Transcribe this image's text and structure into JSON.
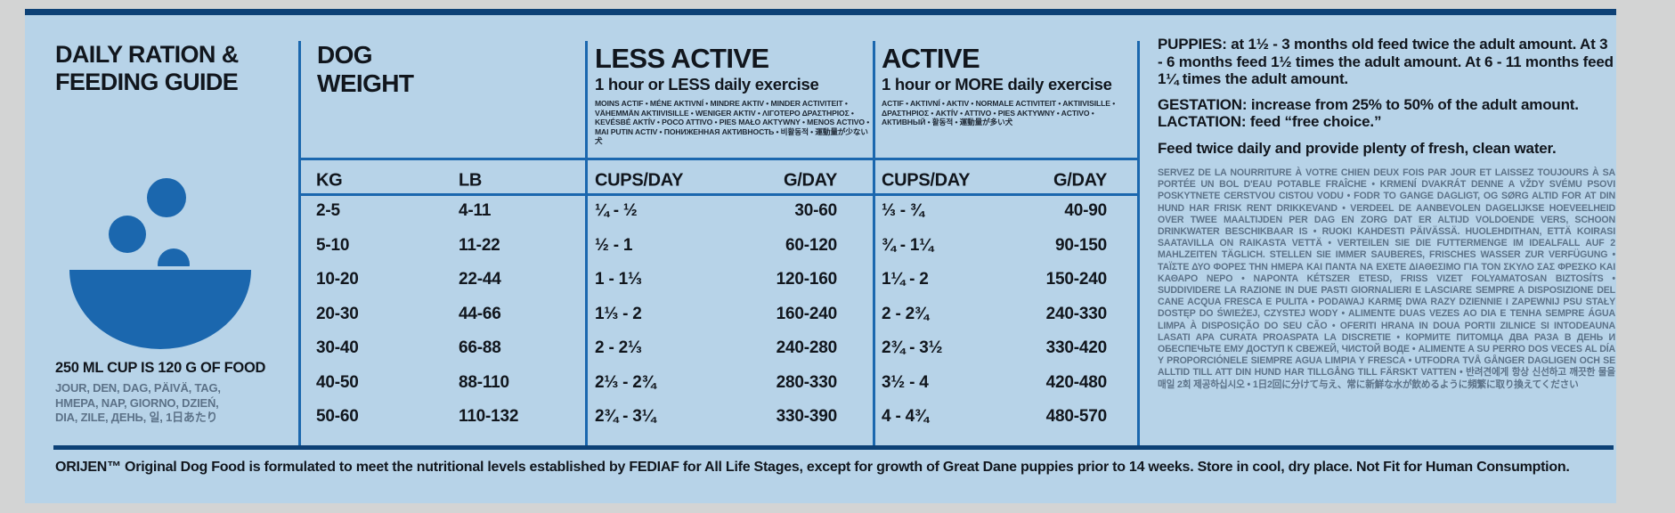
{
  "colors": {
    "panel_background": "#b7d3e8",
    "accent_blue": "#1b67ae",
    "dark_navy": "#0d4176",
    "text_dark": "#11161d",
    "text_gray": "#5c7288"
  },
  "left_panel": {
    "title_line1": "DAILY RATION &",
    "title_line2": "FEEDING GUIDE",
    "bowl_icon": "food-bowl-with-kibble",
    "cup_note": "250 ML CUP IS 120 G OF FOOD",
    "day_words": "JOUR, DEN, DAG, PÄIVÄ, TAG, HMEPA, NAP, GIORNO, DZIEŃ, DIA, ZILE, ДЕНЬ, 일, 1日あたり"
  },
  "table": {
    "weight": {
      "line1": "DOG",
      "line2": "WEIGHT",
      "col_kg": "KG",
      "col_lb": "LB"
    },
    "less_active": {
      "title": "LESS ACTIVE",
      "subtitle": "1 hour or LESS daily exercise",
      "langs": "MOINS ACTIF • MÉNE AKTIVNÍ • MINDRE AKTIV • MINDER ACTIVITEIT • VÄHEMMÄN AKTIIVISILLE • WENIGER AKTIV • ΛΙΓΟΤΕΡΟ ΔΡΑΣΤΗΡΙΟΣ • KEVÉSBÉ AKTÍV • POCO ATTIVO • PIES MAŁO AKTYWNY • MENOS ACTIVO • MAI PUTIN ACTIV • ПОНИЖЕННАЯ АКТИВНОСТЬ • 비활동적 • 運動量が少ない犬",
      "col_cups": "CUPS/DAY",
      "col_g": "G/DAY"
    },
    "active": {
      "title": "ACTIVE",
      "subtitle": "1 hour or MORE daily exercise",
      "langs": "ACTIF • AKTIVNÍ • AKTIV • NORMALE ACTIVITEIT • AKTIIVISILLE • ΔΡΑΣΤΗΡΙΟΣ • AKTÍV • ATTIVO • PIES AKTYWNY • ACTIVO • АКТИВНЫЙ • 활동적 • 運動量が多い犬",
      "col_cups": "CUPS/DAY",
      "col_g": "G/DAY"
    },
    "rows": [
      {
        "kg": "2-5",
        "lb": "4-11",
        "la_cups": "¼ - ½",
        "la_g": "30-60",
        "a_cups": "⅓ - ¾",
        "a_g": "40-90"
      },
      {
        "kg": "5-10",
        "lb": "11-22",
        "la_cups": "½ - 1",
        "la_g": "60-120",
        "a_cups": "¾ - 1¼",
        "a_g": "90-150"
      },
      {
        "kg": "10-20",
        "lb": "22-44",
        "la_cups": "1 - 1⅓",
        "la_g": "120-160",
        "a_cups": "1¼ - 2",
        "a_g": "150-240"
      },
      {
        "kg": "20-30",
        "lb": "44-66",
        "la_cups": "1⅓ - 2",
        "la_g": "160-240",
        "a_cups": "2 - 2¾",
        "a_g": "240-330"
      },
      {
        "kg": "30-40",
        "lb": "66-88",
        "la_cups": "2 - 2⅓",
        "la_g": "240-280",
        "a_cups": "2¾ - 3½",
        "a_g": "330-420"
      },
      {
        "kg": "40-50",
        "lb": "88-110",
        "la_cups": "2⅓ - 2¾",
        "la_g": "280-330",
        "a_cups": "3½ - 4",
        "a_g": "420-480"
      },
      {
        "kg": "50-60",
        "lb": "110-132",
        "la_cups": "2¾ - 3¼",
        "la_g": "330-390",
        "a_cups": "4 - 4¾",
        "a_g": "480-570"
      }
    ]
  },
  "right_panel": {
    "puppies_label": "PUPPIES:",
    "puppies_text": " at 1½ - 3 months old feed twice the adult amount. At 3 - 6 months feed 1½ times the adult amount. At 6 - 11 months feed 1¼ times the adult amount.",
    "gestation_label": "GESTATION:",
    "gestation_text": " increase from 25% to 50% of the adult amount.",
    "lactation_label": "LACTATION:",
    "lactation_text": " feed “free choice.”",
    "water_note": "Feed twice daily and provide plenty of fresh, clean water.",
    "multilang_paragraph": "SERVEZ DE LA NOURRITURE À VOTRE CHIEN DEUX FOIS PAR JOUR ET LAISSEZ TOUJOURS À SA PORTÉE UN BOL D'EAU POTABLE FRAÎCHE • KRMENÍ DVAKRÁT DENNE A VŽDY SVÉMU PSOVI POSKYTNETE CERSTVOU CISTOU VODU • FODR TO GANGE DAGLIGT, OG SØRG ALTID FOR AT DIN HUND HAR FRISK RENT DRIKKEVAND • VERDEEL DE AANBEVOLEN DAGELIJKSE HOEVEELHEID OVER TWEE MAALTIJDEN PER DAG EN ZORG DAT ER ALTIJD VOLDOENDE VERS, SCHOON DRINKWATER BESCHIKBAAR IS • RUOKI KAHDESTI PÄIVÄSSÄ. HUOLEHDITHAN, ETTÄ KOIRASI SAATAVILLA ON RAIKASTA VETTÄ • VERTEILEN SIE DIE FUTTERMENGE IM IDEALFALL AUF 2 MAHLZEITEN TÄGLICH. STELLEN SIE IMMER SAUBERES, FRISCHES WASSER ZUR VERFÜGUNG • ΤΑΪΣΤΕ ΔΥΟ ΦΟΡΕΣ ΤΗΝ ΗΜΕΡΑ ΚΑΙ ΠΑΝΤΑ ΝΑ ΕΧΕΤΕ ΔΙΑΘΕΣΙΜΟ ΓΙΑ ΤΟΝ ΣΚΥΛΟ ΣΑΣ ΦΡΕΣΚΟ ΚΑΙ ΚΑΘΑΡΟ ΝΕΡΟ • NAPONTA KÉTSZER ETESD, FRISS VIZET FOLYAMATOSAN BIZTOSÍTS • SUDDIVIDERE LA RAZIONE IN DUE PASTI GIORNALIERI E LASCIARE SEMPRE A DISPOSIZIONE DEL CANE ACQUA FRESCA E PULITA • PODAWAJ KARMĘ DWA RAZY DZIENNIE I ZAPEWNIJ PSU STAŁY DOSTĘP DO ŚWIEŻEJ, CZYSTEJ WODY • ALIMENTE DUAS VEZES AO DIA E TENHA SEMPRE ÁGUA LIMPA À DISPOSIÇÃO DO SEU CÃO • OFERITI HRANA IN DOUA PORTII ZILNICE SI INTODEAUNA LASATI APA CURATA PROASPATA LA DISCRETIE • КОРМИТЕ ПИТОМЦА ДВА РАЗА В ДЕНЬ И ОБЕСПЕЧЬТЕ ЕМУ ДОСТУП К СВЕЖЕЙ, ЧИСТОЙ ВОДЕ • ALIMENTE A SU PERRO DOS VECES AL DÍA Y PROPORCIÓNELE SIEMPRE AGUA LIMPIA Y FRESCA • UTFODRA TVÅ GÅNGER DAGLIGEN OCH SE ALLTID TILL ATT DIN HUND HAR TILLGÅNG TILL FÄRSKT VATTEN • 반려견에게 항상 신선하고 깨끗한 물을 매일 2회 제공하십시오 • 1日2回に分けて与え、常に新鮮な水が飲めるように頻繁に取り換えてください"
  },
  "footer": {
    "disclaimer": "ORIJEN™ Original Dog Food is formulated to meet the nutritional levels established by FEDIAF for All Life Stages, except for growth of Great Dane puppies prior to 14 weeks. Store in cool, dry place. Not Fit for Human Consumption."
  }
}
